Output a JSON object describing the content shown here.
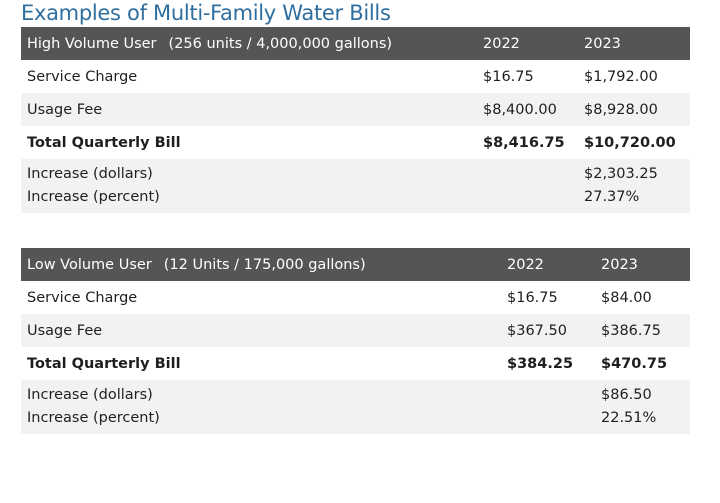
{
  "title": "Examples of Multi-Family Water Bills",
  "tables": [
    {
      "header": {
        "label": "High Volume User",
        "detail": "(256 units / 4,000,000 gallons)",
        "year1": "2022",
        "year2": "2023"
      },
      "rows": [
        {
          "label": "Service Charge",
          "v1": "$16.75",
          "v2": "$1,792.00"
        },
        {
          "label": "Usage Fee",
          "v1": "$8,400.00",
          "v2": "$8,928.00"
        },
        {
          "label": "Total Quarterly Bill",
          "v1": "$8,416.75",
          "v2": "$10,720.00"
        }
      ],
      "increase": {
        "dollars_label": "Increase (dollars)",
        "percent_label": "Increase (percent)",
        "dollars": "$2,303.25",
        "percent": "27.37%"
      }
    },
    {
      "header": {
        "label": "Low Volume User",
        "detail": "(12 Units / 175,000 gallons)",
        "year1": "2022",
        "year2": "2023"
      },
      "rows": [
        {
          "label": "Service Charge",
          "v1": "$16.75",
          "v2": "$84.00"
        },
        {
          "label": "Usage Fee",
          "v1": "$367.50",
          "v2": "$386.75"
        },
        {
          "label": "Total Quarterly Bill",
          "v1": "$384.25",
          "v2": "$470.75"
        }
      ],
      "increase": {
        "dollars_label": "Increase (dollars)",
        "percent_label": "Increase (percent)",
        "dollars": "$86.50",
        "percent": "22.51%"
      }
    }
  ]
}
